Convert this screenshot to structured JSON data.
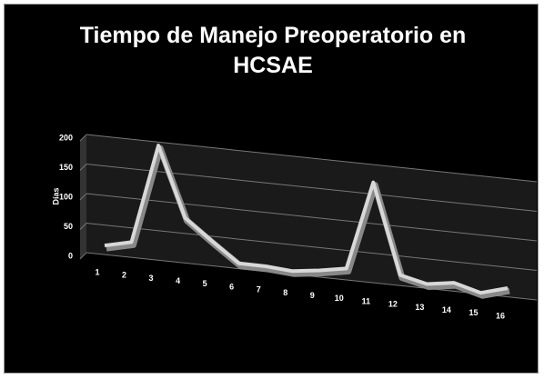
{
  "chart_data": {
    "type": "line3d",
    "title": "Tiempo de Manejo Preoperatorio en HCSAE",
    "y_label": "Días",
    "categories": [
      "1",
      "2",
      "3",
      "4",
      "5",
      "6",
      "7",
      "8",
      "9",
      "10",
      "11",
      "12",
      "13",
      "14",
      "15",
      "16"
    ],
    "series": [
      {
        "name": "Días",
        "color": "#d8d8d8",
        "values": [
          17,
          27,
          185,
          75,
          43,
          12,
          12,
          9,
          15,
          23,
          170,
          22,
          12,
          19,
          7,
          20
        ]
      }
    ],
    "ylim": [
      0,
      200
    ],
    "yticks": [
      0,
      50,
      100,
      150,
      200
    ],
    "grid": true
  }
}
